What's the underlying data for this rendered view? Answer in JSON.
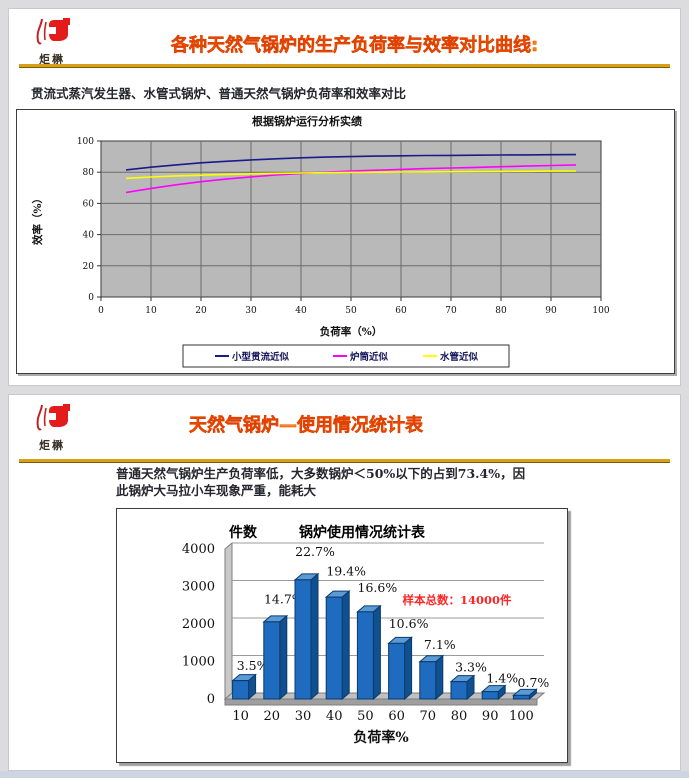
{
  "page": {
    "background": "#dcdcdf",
    "accent_title_color": "#ff8800",
    "rule_color": "#d9a014"
  },
  "slide1": {
    "logo_text": "炬楙",
    "title": "各种天然气锅炉的生产负荷率与效率对比曲线:",
    "subtitle": "贯流式蒸汽发生器、水管式锅炉、普通天然气锅炉负荷率和效率对比"
  },
  "slide2": {
    "logo_text": "炬楙",
    "title": "天然气锅炉—使用情况统计表",
    "body_text": "普通天然气锅炉生产负荷率低，大多数锅炉＜50%以下的占到73.4%，因此锅炉大马拉小车现象严重，能耗大"
  },
  "chart_data": [
    {
      "type": "line",
      "title": "根据锅炉运行分析实绩",
      "xlabel": "负荷率（%）",
      "ylabel": "效率（%）",
      "xlim": [
        0,
        100
      ],
      "ylim": [
        0,
        100
      ],
      "x_ticks": [
        0,
        10,
        20,
        30,
        40,
        50,
        60,
        70,
        80,
        90,
        100
      ],
      "y_ticks": [
        0,
        20,
        40,
        60,
        80,
        100
      ],
      "plot_bg": "#b9b9b9",
      "grid": true,
      "legend_position": "bottom",
      "x": [
        5,
        10,
        15,
        20,
        25,
        30,
        35,
        40,
        45,
        50,
        55,
        60,
        65,
        70,
        75,
        80,
        85,
        90,
        95
      ],
      "series": [
        {
          "name": "小型贯流近似",
          "color": "#1a1a8c",
          "values": [
            81.5,
            83.2,
            84.7,
            86.0,
            87.0,
            87.9,
            88.6,
            89.2,
            89.7,
            90.0,
            90.3,
            90.5,
            90.7,
            90.8,
            90.9,
            91.0,
            91.1,
            91.2,
            91.3
          ]
        },
        {
          "name": "炉筒近似",
          "color": "#ff00ff",
          "values": [
            67.0,
            69.6,
            71.9,
            73.9,
            75.6,
            77.0,
            78.2,
            79.2,
            80.0,
            80.7,
            81.3,
            81.8,
            82.3,
            82.7,
            83.1,
            83.5,
            83.9,
            84.3,
            84.7
          ]
        },
        {
          "name": "水管近似",
          "color": "#ffff00",
          "values": [
            76.0,
            76.9,
            77.6,
            78.1,
            78.6,
            78.9,
            79.2,
            79.5,
            79.7,
            79.9,
            80.0,
            80.1,
            80.2,
            80.3,
            80.4,
            80.5,
            80.6,
            80.7,
            80.8
          ]
        }
      ]
    },
    {
      "type": "bar",
      "title": "锅炉使用情况统计表",
      "xlabel": "负荷率%",
      "ylabel": "件数",
      "ylim": [
        0,
        4000
      ],
      "y_ticks": [
        0,
        1000,
        2000,
        3000,
        4000
      ],
      "categories": [
        "10",
        "20",
        "30",
        "40",
        "50",
        "60",
        "70",
        "80",
        "90",
        "100"
      ],
      "values": [
        490,
        2058,
        3178,
        2716,
        2324,
        1484,
        994,
        462,
        196,
        98
      ],
      "labels": [
        "3.5%",
        "14.7%",
        "22.7%",
        "19.4%",
        "16.6%",
        "10.6%",
        "7.1%",
        "3.3%",
        "1.4%",
        "0.7%"
      ],
      "annotation": "样本总数：14000件",
      "annotation_color": "#ff2525",
      "bar_color": "#1e6bbf",
      "bar_top_color": "#5b9bd5",
      "bar_side_color": "#11508f"
    }
  ]
}
